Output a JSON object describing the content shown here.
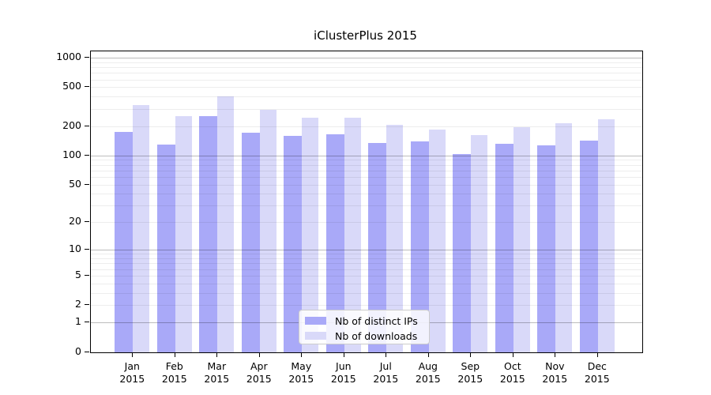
{
  "chart_data": {
    "type": "bar",
    "title": "iClusterPlus 2015",
    "categories": [
      "Jan 2015",
      "Feb 2015",
      "Mar 2015",
      "Apr 2015",
      "May 2015",
      "Jun 2015",
      "Jul 2015",
      "Aug 2015",
      "Sep 2015",
      "Oct 2015",
      "Nov 2015",
      "Dec 2015"
    ],
    "series": [
      {
        "name": "Nb of distinct IPs",
        "color": "#a9a9f8",
        "values": [
          175,
          130,
          254,
          170,
          160,
          164,
          134,
          139,
          104,
          133,
          126,
          141
        ]
      },
      {
        "name": "Nb of downloads",
        "color": "#d9d9f9",
        "values": [
          330,
          252,
          400,
          295,
          242,
          245,
          205,
          183,
          162,
          195,
          216,
          237
        ]
      }
    ],
    "y_axis": {
      "scale": "log1p",
      "ticks": [
        0,
        1,
        2,
        5,
        10,
        20,
        50,
        100,
        200,
        500,
        1000
      ],
      "range": [
        0,
        1100
      ]
    },
    "xlabel": "",
    "ylabel": "",
    "grid": true,
    "legend_position": "bottom-center"
  }
}
